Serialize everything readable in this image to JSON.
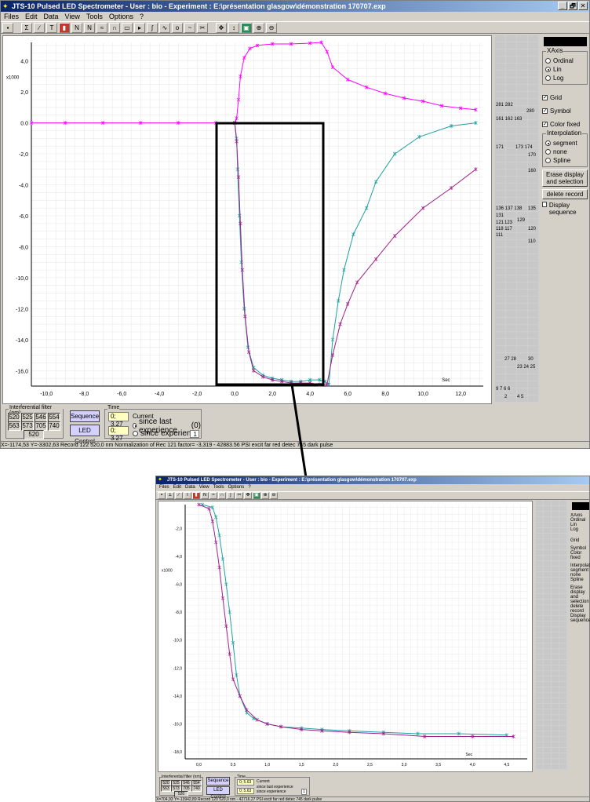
{
  "window1": {
    "title": "JTS-10 Pulsed LED Spectrometer - User : bio - Experiment : E:\\présentation glasgow\\démonstration 170707.exp",
    "status": "X=-1174,53   Y=-3302,63    Record  122   520,0 nm   Normalization of Rec 121 factor= -3,319 - 42883.56  PSI excit far red detec 745 dark pulse",
    "yticks": [
      "4,0",
      "2,0",
      "0.0",
      "-2,0",
      "-4,0",
      "-6,0",
      "-8,0",
      "-10,0",
      "-12,0",
      "-14,0",
      "-16,0"
    ],
    "xticks": [
      "-10,0",
      "-8,0",
      "-6,0",
      "-4,0",
      "-2,0",
      "0,0",
      "2,0",
      "4,0",
      "6,0",
      "8,0",
      "10,0",
      "12,0"
    ],
    "y_multiplier": "x1000",
    "x_unit": "Sec",
    "time_value_1": "0; 3.27",
    "time_value_2": "0; 3.27",
    "record_nums": [
      "281 282",
      "280",
      "171",
      "173 174",
      "170",
      "161 162 163",
      "160",
      "136 137 138",
      "135",
      "131",
      "129",
      "121",
      "123",
      "118 117",
      "120",
      "111",
      "110",
      "27  28",
      "30",
      "23  24  25",
      "9  7  6  6",
      "2",
      "4  5"
    ]
  },
  "window2": {
    "title": "JTS-10 Pulsed LED Spectrometer - User : bio - Experiment : E:\\présentation glasgow\\démonstration 170707.exp",
    "status": "X=704,93   Y=-13942,89    Record  120   520,0 nm - 42716.27  PSI excit far red detec 745 dark pulse",
    "yticks": [
      "-2,0",
      "-4,0",
      "-6,0",
      "-8,0",
      "-10,0",
      "-12,0",
      "-14,0",
      "-16,0",
      "-18,0"
    ],
    "xticks": [
      "0,0",
      "0,5",
      "1,0",
      "1,5",
      "2,0",
      "2,5",
      "3,0",
      "3,5",
      "4,0",
      "4,5"
    ],
    "y_multiplier": "x1000",
    "x_unit": "Sec",
    "time_value_1": "0; 5.63",
    "time_value_2": "0; 5.63"
  },
  "menu": [
    "Files",
    "Edit",
    "Data",
    "View",
    "Tools",
    "Options",
    "?"
  ],
  "xaxis_group": {
    "title": "XAxis",
    "options": [
      "Ordinal",
      "Lin",
      "Log"
    ],
    "selected": "Lin"
  },
  "checks": [
    {
      "label": "Grid",
      "checked": true
    },
    {
      "label": "Symbol",
      "checked": true
    },
    {
      "label": "Color fixed",
      "checked": true
    }
  ],
  "interp_group": {
    "title": "Interpolation",
    "options": [
      "segment",
      "none",
      "Spline"
    ],
    "selected": "segment"
  },
  "buttons": {
    "erase": "Erase display and selection",
    "delete": "delete record",
    "display_seq": "Display sequence",
    "sequence": "Sequence",
    "led": "LED Control"
  },
  "filter": {
    "title": "Interferential filter (nm)",
    "values": [
      "520",
      "525",
      "546",
      "554",
      "563",
      "573",
      "705",
      "740"
    ],
    "selected": "520"
  },
  "time": {
    "title": "Time",
    "current": "Current",
    "since_last": "since last experience",
    "since_last_count": "(0)",
    "since_exp": "since experience",
    "since_exp_count": "1"
  },
  "window_controls": [
    "_",
    "🗗",
    "✕"
  ],
  "colors": {
    "magenta": "#ff00ff",
    "teal": "#20a0a0",
    "purple": "#a0208a",
    "dark": "#3a3aa0"
  }
}
